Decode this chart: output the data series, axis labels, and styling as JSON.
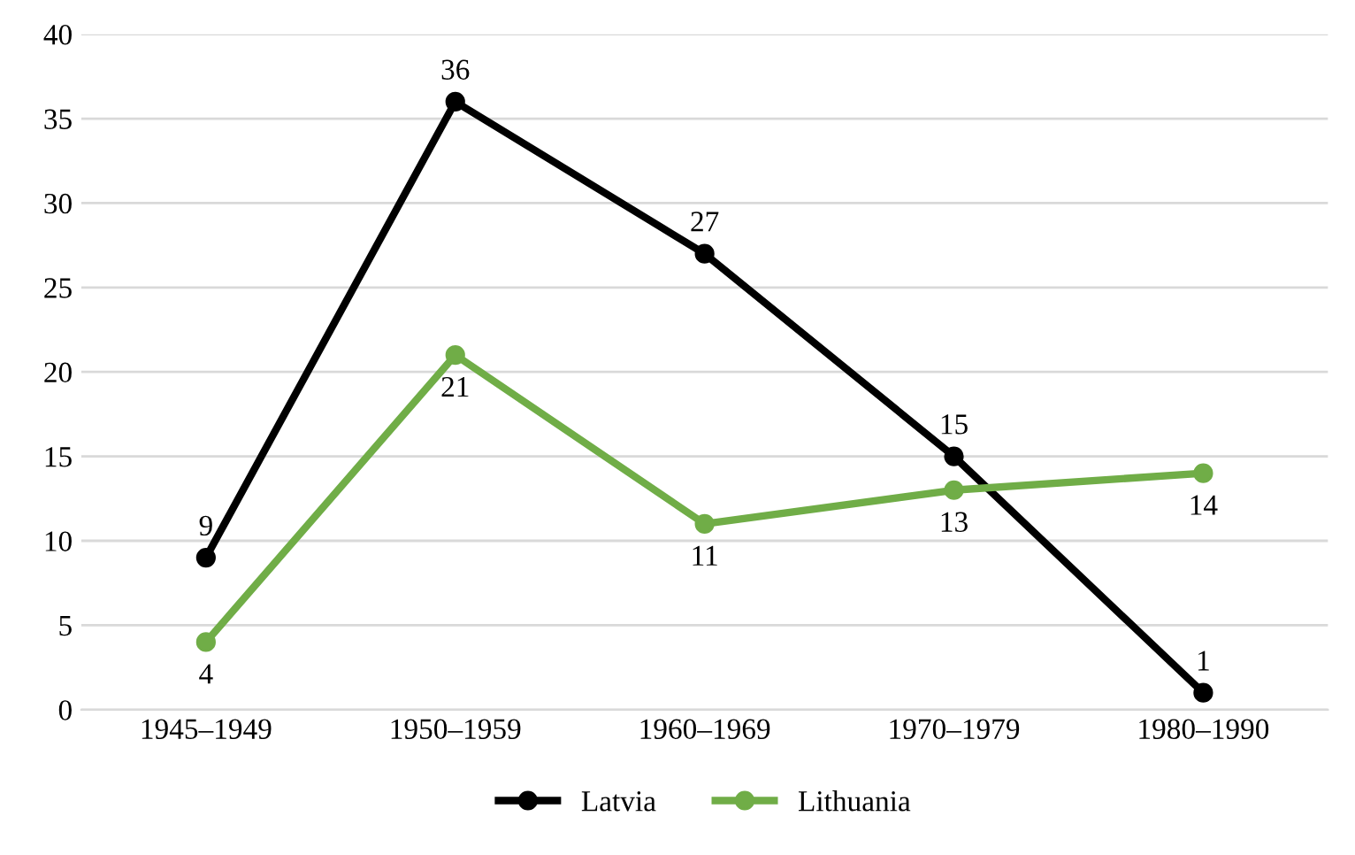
{
  "chart_data": {
    "type": "line",
    "categories": [
      "1945–1949",
      "1950–1959",
      "1960–1969",
      "1970–1979",
      "1980–1990"
    ],
    "series": [
      {
        "name": "Latvia",
        "color": "#000000",
        "values": [
          9,
          36,
          27,
          15,
          1
        ]
      },
      {
        "name": "Lithuania",
        "color": "#70ad47",
        "values": [
          4,
          21,
          11,
          13,
          14
        ]
      }
    ],
    "ylim": [
      0,
      40
    ],
    "yticks": [
      0,
      5,
      10,
      15,
      20,
      25,
      30,
      35,
      40
    ],
    "grid": "y",
    "legend": "bottom",
    "marker": "circle",
    "line_style": "solid",
    "data_labels": true
  }
}
